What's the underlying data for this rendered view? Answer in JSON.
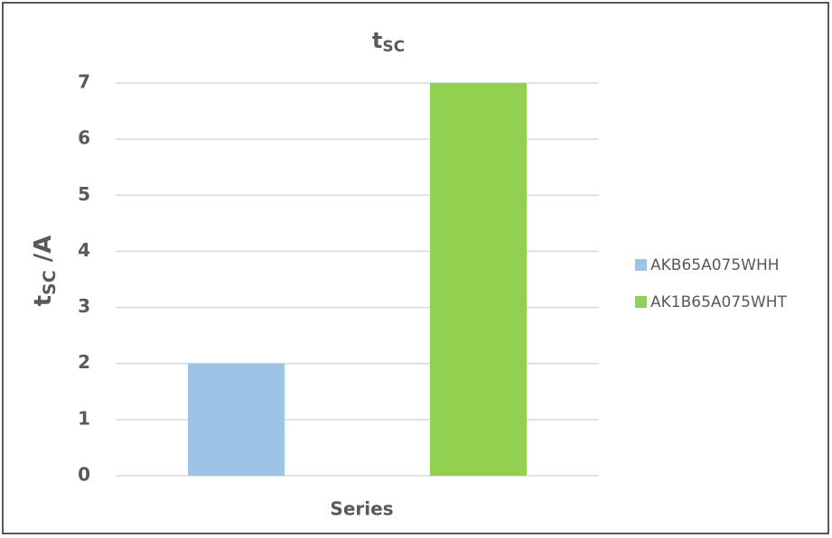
{
  "chart_data": {
    "type": "bar",
    "title": {
      "text": "t",
      "subscript": "SC"
    },
    "ylabel": {
      "text": "t",
      "subscript": "SC",
      "suffix": " /A"
    },
    "categories": [
      "Series"
    ],
    "series": [
      {
        "name": "AKB65A075WHH",
        "color": "#9dc3e6",
        "values": [
          2
        ]
      },
      {
        "name": "AK1B65A075WHT",
        "color": "#92d050",
        "values": [
          7
        ]
      }
    ],
    "ylim": [
      0,
      7
    ],
    "yticks": [
      0,
      1,
      2,
      3,
      4,
      5,
      6,
      7
    ],
    "grid": true,
    "legend": "right"
  }
}
